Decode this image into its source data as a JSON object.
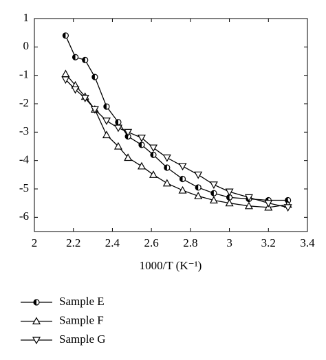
{
  "chart_data": {
    "type": "line",
    "x_label": "1000/T (K⁻¹)",
    "xlim": [
      2,
      3.4
    ],
    "xticks": [
      2,
      2.2,
      2.4,
      2.6,
      2.8,
      3,
      3.2,
      3.4
    ],
    "ylim": [
      -6.5,
      1
    ],
    "yticks": [
      -6,
      -5,
      -4,
      -3,
      -2,
      -1,
      0,
      1
    ],
    "x": [
      2.16,
      2.21,
      2.26,
      2.31,
      2.37,
      2.43,
      2.48,
      2.55,
      2.61,
      2.68,
      2.76,
      2.84,
      2.92,
      3.0,
      3.1,
      3.2,
      3.3
    ],
    "series": [
      {
        "name": "Sample E",
        "color": "#000000",
        "marker": "half-circle",
        "values": [
          0.4,
          -0.36,
          -0.46,
          -1.06,
          -2.1,
          -2.65,
          -3.15,
          -3.45,
          -3.8,
          -4.25,
          -4.65,
          -4.95,
          -5.15,
          -5.3,
          -5.35,
          -5.4,
          -5.4
        ]
      },
      {
        "name": "Sample F",
        "color": "#000000",
        "marker": "triangle-up",
        "values": [
          -0.95,
          -1.35,
          -1.75,
          -2.2,
          -3.1,
          -3.5,
          -3.9,
          -4.2,
          -4.5,
          -4.8,
          -5.05,
          -5.25,
          -5.4,
          -5.5,
          -5.6,
          -5.65,
          -5.55
        ]
      },
      {
        "name": "Sample G",
        "color": "#000000",
        "marker": "triangle-down",
        "values": [
          -1.15,
          -1.5,
          -1.8,
          -2.2,
          -2.6,
          -2.85,
          -3.0,
          -3.2,
          -3.55,
          -3.9,
          -4.2,
          -4.5,
          -4.85,
          -5.1,
          -5.3,
          -5.5,
          -5.65
        ]
      }
    ]
  }
}
